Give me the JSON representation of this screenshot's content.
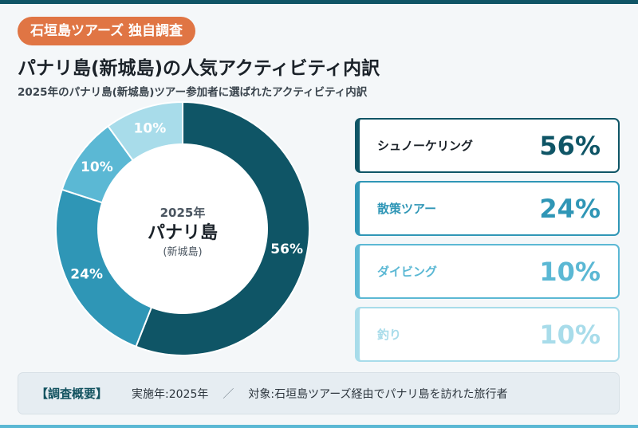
{
  "header": {
    "badge": "石垣島ツアーズ 独自調査",
    "title": "パナリ島(新城島)の人気アクティビティ内訳",
    "subtitle": "2025年のパナリ島(新城島)ツアー参加者に選ばれたアクティビティ内訳"
  },
  "center": {
    "year": "2025年",
    "name": "パナリ島",
    "sub": "(新城島)"
  },
  "chart_data": {
    "type": "pie",
    "categories": [
      "シュノーケリング",
      "散策ツアー",
      "ダイビング",
      "釣り"
    ],
    "values": [
      56,
      24,
      10,
      10
    ],
    "value_labels": [
      "56%",
      "24%",
      "10%",
      "10%"
    ],
    "colors": [
      "#0f5566",
      "#2f96b6",
      "#5bb8d4",
      "#a8dcea"
    ],
    "donut": true,
    "legend": "right"
  },
  "footer": {
    "head": "【調査概要】",
    "year": "実施年:2025年",
    "separator": "／",
    "target": "対象:石垣島ツアーズ経由でパナリ島を訪れた旅行者"
  },
  "colors": {
    "badge": "#e07544",
    "accent": "#0f5566"
  }
}
